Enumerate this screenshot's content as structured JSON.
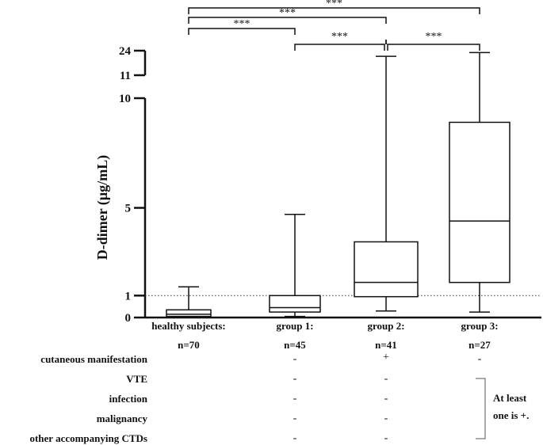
{
  "chart_data": {
    "type": "box",
    "ylabel": "D-dimer (µg/mL)",
    "y_ticks_lower": [
      "0",
      "1",
      "5",
      "10"
    ],
    "y_ticks_upper": [
      "11",
      "24"
    ],
    "y_break": {
      "lower_range": [
        0,
        10
      ],
      "upper_range": [
        11,
        24
      ]
    },
    "reference_line": {
      "y": 1,
      "style": "dotted"
    },
    "categories": [
      {
        "name": "healthy subjects:",
        "n": "n=70",
        "whisker_low": 0.03,
        "q1": 0.05,
        "median": 0.15,
        "q3": 0.35,
        "whisker_high": 1.4
      },
      {
        "name": "group 1:",
        "n": "n=45",
        "whisker_low": 0.05,
        "q1": 0.25,
        "median": 0.45,
        "q3": 1.0,
        "whisker_high": 4.7
      },
      {
        "name": "group 2:",
        "n": "n=41",
        "whisker_low": 0.3,
        "q1": 0.95,
        "median": 1.6,
        "q3": 3.45,
        "whisker_high": 21.0
      },
      {
        "name": "group 3:",
        "n": "n=27",
        "whisker_low": 0.25,
        "q1": 1.6,
        "median": 4.4,
        "q3": 8.9,
        "whisker_high": 23.0
      }
    ],
    "significance": [
      {
        "from": 0,
        "to": 1,
        "label": "***"
      },
      {
        "from": 0,
        "to": 2,
        "label": "***"
      },
      {
        "from": 0,
        "to": 3,
        "label": "***"
      },
      {
        "from": 1,
        "to": 2,
        "label": "***"
      },
      {
        "from": 2,
        "to": 3,
        "label": "***"
      }
    ]
  },
  "table": {
    "rows": [
      {
        "label": "cutaneous manifestation",
        "values": [
          "",
          "-",
          "+",
          "-"
        ]
      },
      {
        "label": "VTE",
        "values": [
          "",
          "-",
          "-",
          ""
        ]
      },
      {
        "label": "infection",
        "values": [
          "",
          "-",
          "-",
          ""
        ]
      },
      {
        "label": "malignancy",
        "values": [
          "",
          "-",
          "-",
          ""
        ]
      },
      {
        "label": "other accompanying CTDs",
        "values": [
          "",
          "-",
          "-",
          ""
        ]
      }
    ],
    "note": "At least one is +."
  }
}
